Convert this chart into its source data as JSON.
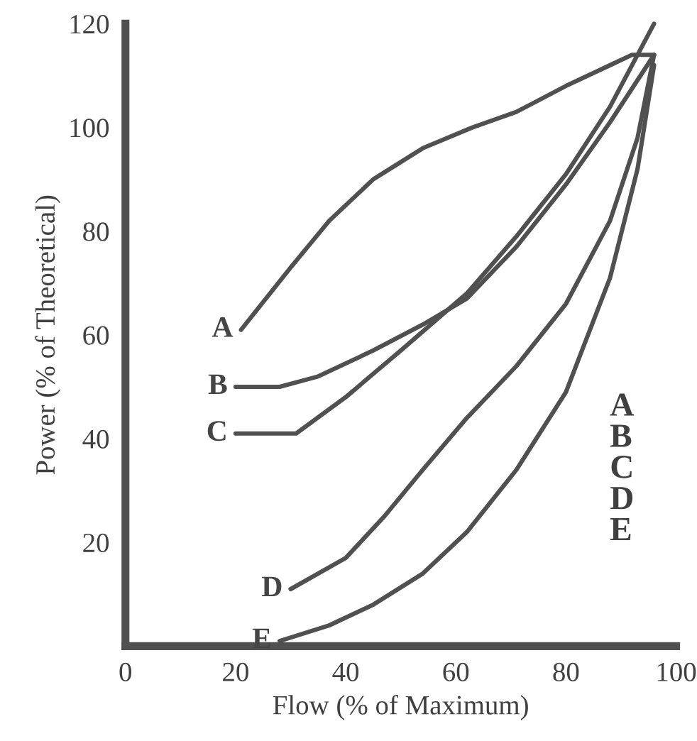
{
  "chart_data": {
    "type": "line",
    "xlabel": "Flow (% of Maximum)",
    "ylabel": "Power (% of Theoretical)",
    "xlim": [
      0,
      100
    ],
    "ylim": [
      0,
      120
    ],
    "xticks": [
      0,
      20,
      40,
      60,
      80,
      100
    ],
    "yticks": [
      20,
      40,
      60,
      80,
      100,
      120
    ],
    "grid": false,
    "legend": false,
    "marker": "none",
    "line_style": "solid",
    "series": [
      {
        "color": "#505050",
        "x": [
          21,
          30,
          37,
          45,
          54,
          63,
          71,
          80,
          88,
          92,
          96
        ],
        "values": [
          61,
          73,
          82,
          90,
          96,
          100,
          103,
          108,
          112,
          114,
          114
        ]
      },
      {
        "color": "#505050",
        "x": [
          20,
          28,
          35,
          45,
          54,
          62,
          71,
          80,
          88,
          96
        ],
        "values": [
          50,
          50,
          52,
          57,
          62,
          67,
          77,
          89,
          101,
          114
        ]
      },
      {
        "color": "#505050",
        "x": [
          20,
          31,
          40,
          50,
          62,
          71,
          80,
          88,
          96
        ],
        "values": [
          41,
          41,
          48,
          57,
          68,
          79,
          91,
          104,
          120
        ]
      },
      {
        "color": "#505050",
        "x": [
          30,
          40,
          47,
          54,
          62,
          71,
          80,
          88,
          93,
          96
        ],
        "values": [
          11,
          17,
          25,
          34,
          44,
          54,
          66,
          82,
          98,
          114
        ]
      },
      {
        "color": "#505050",
        "x": [
          28,
          37,
          45,
          54,
          62,
          71,
          80,
          88,
          93,
          96
        ],
        "values": [
          1,
          4,
          8,
          14,
          22,
          34,
          49,
          71,
          92,
          112
        ]
      }
    ],
    "annotations": [
      {
        "text": "A",
        "x": 21,
        "y": 61
      },
      {
        "text": "B",
        "x": 20,
        "y": 50
      },
      {
        "text": "C",
        "x": 20,
        "y": 41
      },
      {
        "text": "D",
        "x": 30,
        "y": 11
      },
      {
        "text": "E",
        "x": 28,
        "y": 1
      },
      "A",
      "B",
      "C",
      "D",
      "E"
    ]
  }
}
